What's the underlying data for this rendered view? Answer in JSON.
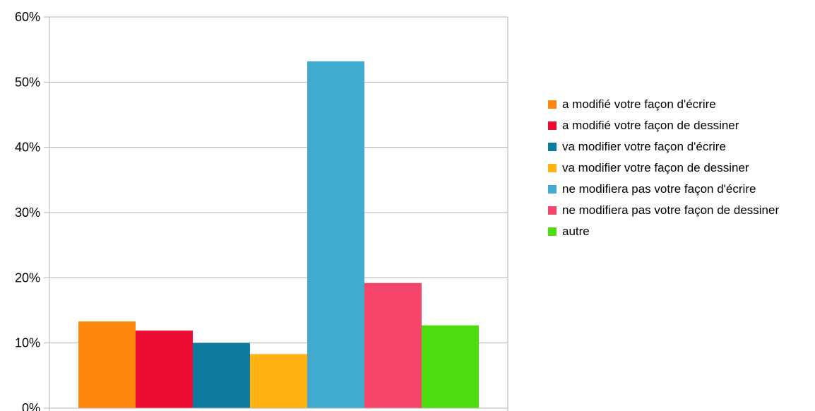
{
  "chart_data": {
    "type": "bar",
    "title": "",
    "xlabel": "",
    "ylabel": "",
    "ylim": [
      0,
      60
    ],
    "y_ticks": [
      "0%",
      "10%",
      "20%",
      "30%",
      "40%",
      "50%",
      "60%"
    ],
    "grid": true,
    "legend_position": "right",
    "series": [
      {
        "name": "a modifié votre façon d'écrire",
        "value": 13.3,
        "color": "#ff870f"
      },
      {
        "name": "a modifié votre façon de dessiner",
        "value": 11.9,
        "color": "#ed0c33"
      },
      {
        "name": "va modifier votre façon d'écrire",
        "value": 10.0,
        "color": "#0e7a9e"
      },
      {
        "name": "va modifier votre façon de dessiner",
        "value": 8.3,
        "color": "#ffb212"
      },
      {
        "name": "ne modifiera pas votre façon d'écrire",
        "value": 53.2,
        "color": "#41abcf"
      },
      {
        "name": "ne modifiera pas votre façon de dessiner",
        "value": 19.2,
        "color": "#f5456a"
      },
      {
        "name": "autre",
        "value": 12.7,
        "color": "#4ddc0e"
      }
    ]
  }
}
